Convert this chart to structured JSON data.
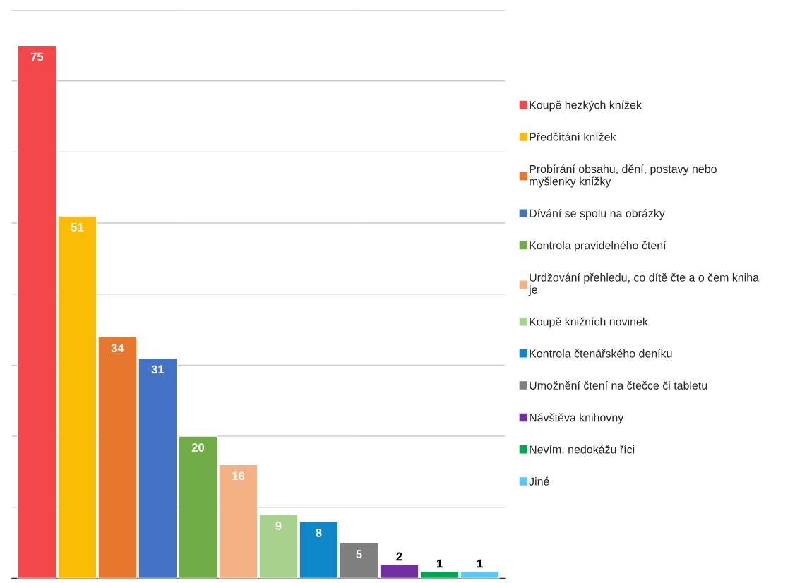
{
  "chart_data": {
    "type": "bar",
    "categories": [
      null
    ],
    "series": [
      {
        "name": "Koupě hezkých knížek",
        "color": "#f4474a",
        "values": [
          75
        ]
      },
      {
        "name": "Předčítání knížek",
        "color": "#fbbc05",
        "values": [
          51
        ]
      },
      {
        "name": "Probírání obsahu, dění, postavy nebo myšlenky knížky",
        "color": "#e8772e",
        "values": [
          34
        ]
      },
      {
        "name": "Dívání se spolu na obrázky",
        "color": "#4472c4",
        "values": [
          31
        ]
      },
      {
        "name": "Kontrola pravidelného čtení",
        "color": "#70ad47",
        "values": [
          20
        ]
      },
      {
        "name": "Urdžování přehledu, co dítě čte a o čem kniha je",
        "color": "#f4b183",
        "values": [
          16
        ]
      },
      {
        "name": "Koupě knižních novinek",
        "color": "#a9d18e",
        "values": [
          9
        ]
      },
      {
        "name": "Kontrola čtenářského deníku",
        "color": "#0e88c8",
        "values": [
          8
        ]
      },
      {
        "name": "Umožnění čtení na čtečce či tabletu",
        "color": "#7f7f7f",
        "values": [
          5
        ]
      },
      {
        "name": "Návštěva knihovny",
        "color": "#7030a0",
        "values": [
          2
        ]
      },
      {
        "name": "Nevím, nedokážu říci",
        "color": "#00a651",
        "values": [
          1
        ]
      },
      {
        "name": "Jiné",
        "color": "#5bc8f5",
        "values": [
          1
        ]
      }
    ],
    "ylim": [
      0,
      80
    ],
    "yticks": [
      {
        "value": 0,
        "label": null
      },
      {
        "value": 10,
        "label": null
      },
      {
        "value": 20,
        "label": null
      },
      {
        "value": 30,
        "label": null
      },
      {
        "value": 40,
        "label": null
      },
      {
        "value": 50,
        "label": null
      },
      {
        "value": 60,
        "label": null
      },
      {
        "value": 70,
        "label": null
      },
      {
        "value": 80,
        "label": null
      }
    ],
    "grid": "y",
    "legend": "right",
    "data_labels": true
  }
}
